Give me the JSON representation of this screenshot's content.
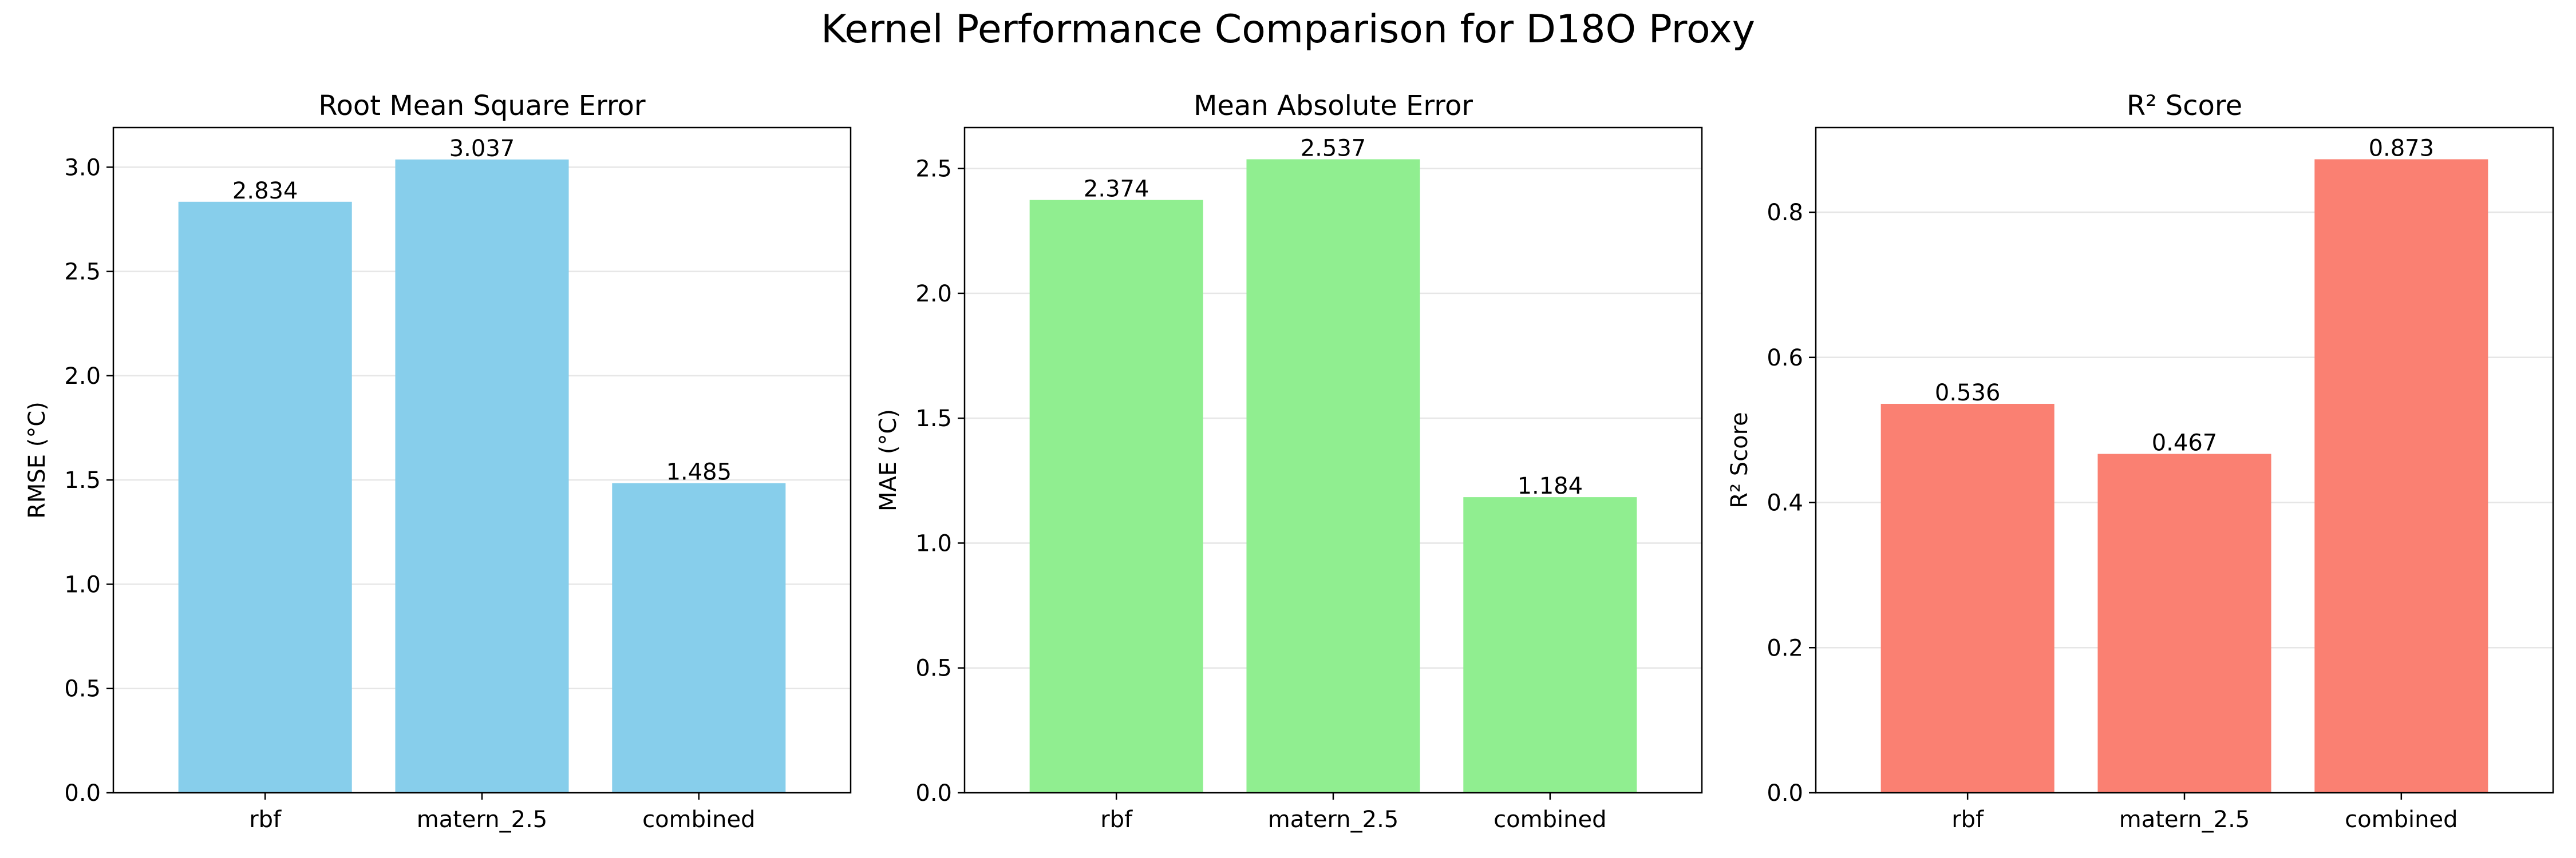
{
  "figure": {
    "suptitle": "Kernel Performance Comparison for D18O Proxy"
  },
  "chart_data": [
    {
      "type": "bar",
      "title": "Root Mean Square Error",
      "xlabel": "",
      "ylabel": "RMSE (°C)",
      "categories": [
        "rbf",
        "matern_2.5",
        "combined"
      ],
      "values": [
        2.834,
        3.037,
        1.485
      ],
      "value_labels": [
        "2.834",
        "3.037",
        "1.485"
      ],
      "ylim": [
        0,
        3.19
      ],
      "yticks": [
        0.0,
        0.5,
        1.0,
        1.5,
        2.0,
        2.5,
        3.0
      ],
      "ytick_labels": [
        "0.0",
        "0.5",
        "1.0",
        "1.5",
        "2.0",
        "2.5",
        "3.0"
      ],
      "color": "#87ceeb",
      "grid": "y"
    },
    {
      "type": "bar",
      "title": "Mean Absolute Error",
      "xlabel": "",
      "ylabel": "MAE (°C)",
      "categories": [
        "rbf",
        "matern_2.5",
        "combined"
      ],
      "values": [
        2.374,
        2.537,
        1.184
      ],
      "value_labels": [
        "2.374",
        "2.537",
        "1.184"
      ],
      "ylim": [
        0,
        2.664
      ],
      "yticks": [
        0.0,
        0.5,
        1.0,
        1.5,
        2.0,
        2.5
      ],
      "ytick_labels": [
        "0.0",
        "0.5",
        "1.0",
        "1.5",
        "2.0",
        "2.5"
      ],
      "color": "#90ee90",
      "grid": "y"
    },
    {
      "type": "bar",
      "title": "R² Score",
      "xlabel": "",
      "ylabel": "R² Score",
      "categories": [
        "rbf",
        "matern_2.5",
        "combined"
      ],
      "values": [
        0.536,
        0.467,
        0.873
      ],
      "value_labels": [
        "0.536",
        "0.467",
        "0.873"
      ],
      "ylim": [
        0,
        0.9167
      ],
      "yticks": [
        0.0,
        0.2,
        0.4,
        0.6,
        0.8
      ],
      "ytick_labels": [
        "0.0",
        "0.2",
        "0.4",
        "0.6",
        "0.8"
      ],
      "color": "#fa8072",
      "grid": "y"
    }
  ]
}
